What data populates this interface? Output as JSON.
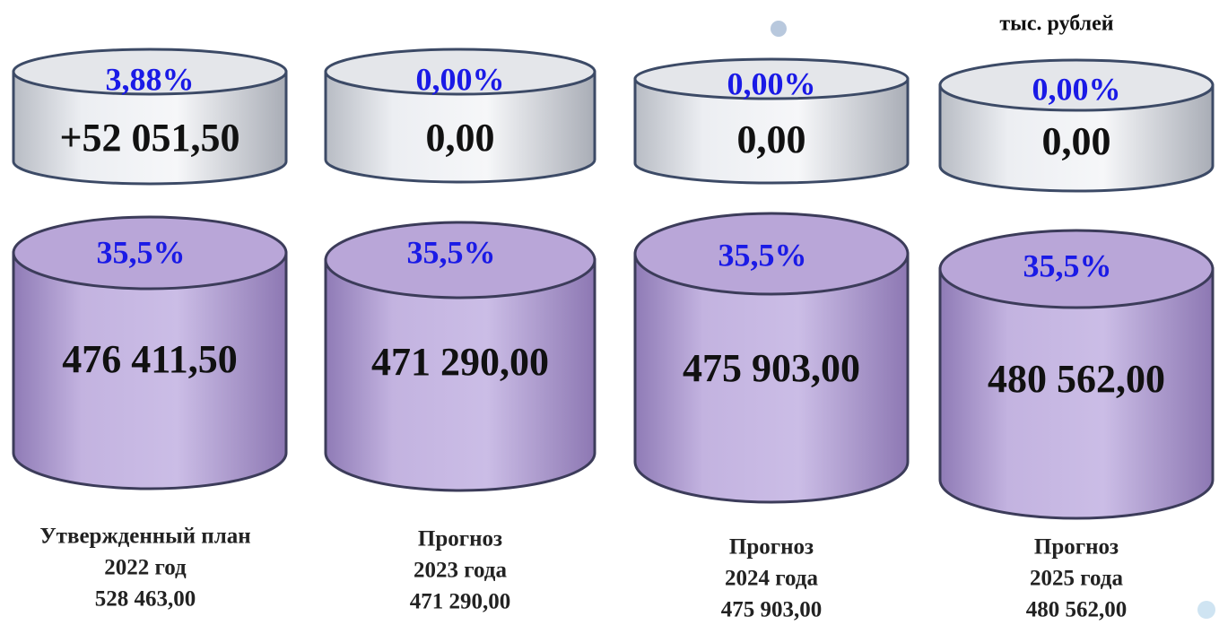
{
  "unit": "тыс. рублей",
  "columns": [
    {
      "top": {
        "percent": "3,88%",
        "value": "+52 051,50"
      },
      "bottom": {
        "percent": "35,5%",
        "value": "476 411,50"
      },
      "caption": [
        "Утвержденный план",
        "2022 год",
        "528 463,00"
      ]
    },
    {
      "top": {
        "percent": "0,00%",
        "value": "0,00"
      },
      "bottom": {
        "percent": "35,5%",
        "value": "471 290,00"
      },
      "caption": [
        "Прогноз",
        "2023 года",
        "471 290,00"
      ]
    },
    {
      "top": {
        "percent": "0,00%",
        "value": "0,00"
      },
      "bottom": {
        "percent": "35,5%",
        "value": "475 903,00"
      },
      "caption": [
        "Прогноз",
        "2024 года",
        "475 903,00"
      ]
    },
    {
      "top": {
        "percent": "0,00%",
        "value": "0,00"
      },
      "bottom": {
        "percent": "35,5%",
        "value": "480 562,00"
      },
      "caption": [
        "Прогноз",
        "2025 года",
        "480 562,00"
      ]
    }
  ]
}
